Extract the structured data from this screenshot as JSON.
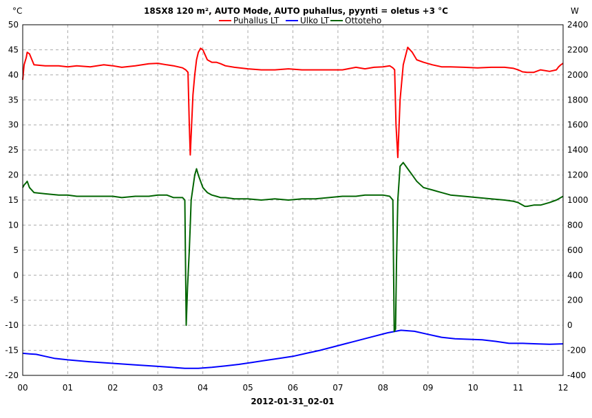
{
  "chart_data": {
    "type": "line",
    "title": "18SX8 120 m², AUTO Mode, AUTO puhallus, pyynti = oletus +3 °C",
    "xlabel": "2012-01-31_02-01",
    "y_unit_left": "°C",
    "y_unit_right": "W",
    "xlim": [
      0,
      12
    ],
    "ylim_left": [
      -20,
      50
    ],
    "ylim_right": [
      -400,
      2400
    ],
    "x_ticks": [
      0,
      1,
      2,
      3,
      4,
      5,
      6,
      7,
      8,
      9,
      10,
      11,
      12
    ],
    "x_tick_labels": [
      "00",
      "01",
      "02",
      "03",
      "04",
      "05",
      "06",
      "07",
      "08",
      "09",
      "10",
      "11",
      "12"
    ],
    "y_ticks_left": [
      -20,
      -15,
      -10,
      -5,
      0,
      5,
      10,
      15,
      20,
      25,
      30,
      35,
      40,
      45,
      50
    ],
    "y_tick_labels_left": [
      "-20",
      "-15",
      "-10",
      "-5",
      "0",
      "5",
      "10",
      "15",
      "20",
      "25",
      "30",
      "35",
      "40",
      "45",
      "50"
    ],
    "y_ticks_right": [
      -400,
      -200,
      0,
      200,
      400,
      600,
      800,
      1000,
      1200,
      1400,
      1600,
      1800,
      2000,
      2200,
      2400
    ],
    "y_tick_labels_right": [
      "-400",
      "-200",
      "0",
      "200",
      "400",
      "600",
      "800",
      "1000",
      "1200",
      "1400",
      "1600",
      "1800",
      "2000",
      "2200",
      "2400"
    ],
    "grid": true,
    "legend_position": "top-center",
    "series": [
      {
        "name": "Puhallus LT",
        "color": "#ff0000",
        "axis": "left",
        "x": [
          0,
          0.03,
          0.08,
          0.1,
          0.15,
          0.25,
          0.5,
          0.8,
          1,
          1.2,
          1.5,
          1.8,
          2,
          2.2,
          2.5,
          2.8,
          3.0,
          3.2,
          3.35,
          3.45,
          3.55,
          3.62,
          3.67,
          3.7,
          3.72,
          3.74,
          3.78,
          3.82,
          3.86,
          3.9,
          3.95,
          4.0,
          4.05,
          4.1,
          4.2,
          4.3,
          4.4,
          4.5,
          4.7,
          5.0,
          5.3,
          5.6,
          5.9,
          6.2,
          6.5,
          6.8,
          7.1,
          7.4,
          7.6,
          7.8,
          8.0,
          8.15,
          8.22,
          8.26,
          8.29,
          8.33,
          8.38,
          8.45,
          8.55,
          8.65,
          8.75,
          8.9,
          9.1,
          9.3,
          9.5,
          9.8,
          10.1,
          10.4,
          10.7,
          10.9,
          11.0,
          11.05,
          11.1,
          11.2,
          11.35,
          11.5,
          11.7,
          11.85,
          11.9,
          11.95,
          12.0
        ],
        "y": [
          39,
          42,
          43.5,
          44.5,
          44.2,
          42,
          41.8,
          41.8,
          41.6,
          41.8,
          41.6,
          42,
          41.8,
          41.5,
          41.8,
          42.2,
          42.3,
          42,
          41.8,
          41.6,
          41.4,
          41,
          40.5,
          30,
          24,
          28,
          36,
          40,
          43,
          44.5,
          45.3,
          45,
          44,
          43,
          42.5,
          42.5,
          42.2,
          41.8,
          41.5,
          41.2,
          41,
          41,
          41.2,
          41,
          41,
          41,
          41,
          41.5,
          41.2,
          41.5,
          41.6,
          41.8,
          41.4,
          41,
          30,
          23.5,
          35,
          42,
          45.5,
          44.5,
          43,
          42.5,
          42,
          41.6,
          41.6,
          41.5,
          41.4,
          41.5,
          41.5,
          41.3,
          41,
          40.8,
          40.6,
          40.5,
          40.5,
          41,
          40.7,
          41,
          41.6,
          42,
          42.3
        ]
      },
      {
        "name": "Ulko LT",
        "color": "#0000ff",
        "axis": "left",
        "x": [
          0,
          0.15,
          0.3,
          0.5,
          0.7,
          1.0,
          1.5,
          2.0,
          2.5,
          3.0,
          3.3,
          3.6,
          3.9,
          4.2,
          4.5,
          4.8,
          5.1,
          5.4,
          5.7,
          6.0,
          6.3,
          6.6,
          6.9,
          7.2,
          7.5,
          7.8,
          8.1,
          8.4,
          8.7,
          9.0,
          9.3,
          9.6,
          9.9,
          10.2,
          10.5,
          10.8,
          11.1,
          11.4,
          11.7,
          12.0
        ],
        "y": [
          -15.6,
          -15.7,
          -15.8,
          -16.2,
          -16.6,
          -16.9,
          -17.3,
          -17.6,
          -17.9,
          -18.2,
          -18.4,
          -18.6,
          -18.6,
          -18.4,
          -18.1,
          -17.8,
          -17.4,
          -17.0,
          -16.6,
          -16.2,
          -15.6,
          -15.0,
          -14.3,
          -13.6,
          -12.9,
          -12.2,
          -11.5,
          -11.0,
          -11.2,
          -11.8,
          -12.4,
          -12.7,
          -12.8,
          -12.9,
          -13.2,
          -13.6,
          -13.6,
          -13.7,
          -13.8,
          -13.7
        ]
      },
      {
        "name": "Ottoteho",
        "color": "#006400",
        "axis": "right",
        "x": [
          0,
          0.03,
          0.08,
          0.1,
          0.15,
          0.25,
          0.5,
          0.8,
          1,
          1.2,
          1.5,
          1.8,
          2,
          2.2,
          2.5,
          2.8,
          3.0,
          3.2,
          3.35,
          3.45,
          3.55,
          3.6,
          3.63,
          3.66,
          3.7,
          3.72,
          3.74,
          3.78,
          3.82,
          3.86,
          3.9,
          3.95,
          4.0,
          4.05,
          4.1,
          4.2,
          4.3,
          4.4,
          4.5,
          4.7,
          5.0,
          5.3,
          5.6,
          5.9,
          6.2,
          6.5,
          6.8,
          7.1,
          7.4,
          7.6,
          7.8,
          8.0,
          8.15,
          8.22,
          8.25,
          8.28,
          8.3,
          8.33,
          8.38,
          8.45,
          8.55,
          8.65,
          8.75,
          8.9,
          9.1,
          9.3,
          9.5,
          9.8,
          10.1,
          10.4,
          10.7,
          10.9,
          11.0,
          11.05,
          11.1,
          11.15,
          11.2,
          11.35,
          11.5,
          11.7,
          11.85,
          11.9,
          11.95,
          12.0
        ],
        "y": [
          1100,
          1120,
          1140,
          1150,
          1100,
          1060,
          1050,
          1040,
          1040,
          1030,
          1030,
          1030,
          1030,
          1020,
          1030,
          1030,
          1040,
          1040,
          1020,
          1020,
          1020,
          1000,
          0,
          300,
          600,
          800,
          1000,
          1100,
          1200,
          1250,
          1200,
          1150,
          1100,
          1080,
          1060,
          1040,
          1030,
          1020,
          1020,
          1010,
          1010,
          1000,
          1010,
          1000,
          1010,
          1010,
          1020,
          1030,
          1030,
          1040,
          1040,
          1040,
          1030,
          1000,
          -50,
          -30,
          500,
          1000,
          1270,
          1300,
          1250,
          1200,
          1150,
          1100,
          1080,
          1060,
          1040,
          1030,
          1020,
          1010,
          1000,
          990,
          980,
          970,
          960,
          950,
          950,
          960,
          960,
          980,
          1000,
          1010,
          1020,
          1030
        ]
      }
    ]
  }
}
